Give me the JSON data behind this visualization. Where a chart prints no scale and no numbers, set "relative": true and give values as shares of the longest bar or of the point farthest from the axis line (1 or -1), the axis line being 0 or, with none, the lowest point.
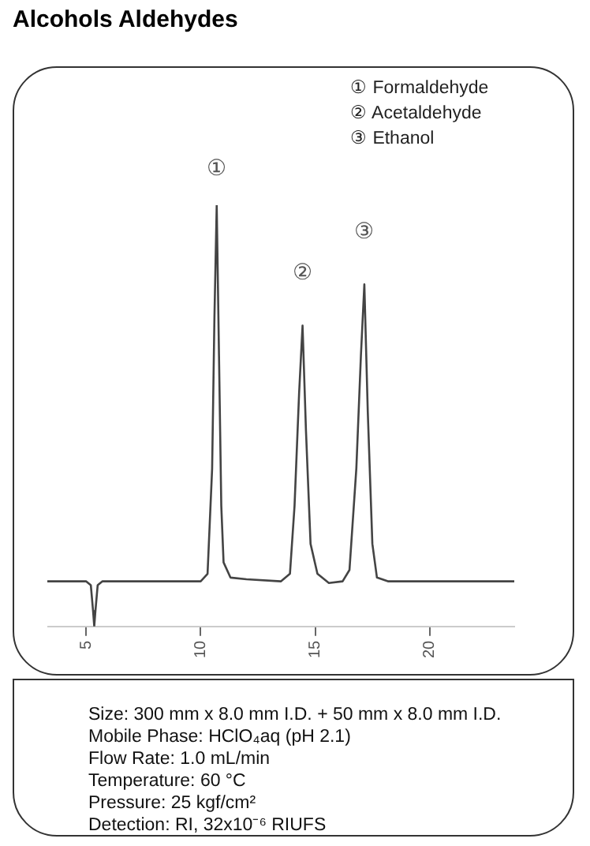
{
  "chart_data": {
    "type": "line",
    "title": "Alcohols Aldehydes",
    "relative": true,
    "color": "#444444",
    "x": [
      3.3,
      5.0,
      5.2,
      5.3,
      5.35,
      5.4,
      5.5,
      5.7,
      10.0,
      10.3,
      10.5,
      10.6,
      10.7,
      10.8,
      10.9,
      11.0,
      11.3,
      12.0,
      13.5,
      13.9,
      14.1,
      14.3,
      14.45,
      14.6,
      14.8,
      15.1,
      15.6,
      16.2,
      16.5,
      16.8,
      17.0,
      17.15,
      17.3,
      17.5,
      17.7,
      18.2,
      23.7
    ],
    "values": [
      0.107,
      0.107,
      0.098,
      0.036,
      0,
      0.036,
      0.098,
      0.107,
      0.107,
      0.125,
      0.375,
      0.732,
      1,
      0.643,
      0.286,
      0.152,
      0.116,
      0.112,
      0.107,
      0.125,
      0.286,
      0.554,
      0.714,
      0.464,
      0.196,
      0.125,
      0.103,
      0.107,
      0.134,
      0.375,
      0.643,
      0.812,
      0.509,
      0.196,
      0.116,
      0.107,
      0.107
    ],
    "xlim": [
      3.3,
      23.7
    ],
    "xticks": [
      5,
      10,
      15,
      20
    ],
    "grid": false,
    "legend": false,
    "marker": "none",
    "line_style": "solid",
    "annotations": [
      "① Formaldehyde",
      "② Acetaldehyde",
      "③ Ethanol",
      "①",
      "②",
      "③",
      "Size: 300 mm x 8.0 mm I.D. + 50 mm x 8.0 mm I.D.",
      "Mobile Phase: HClO₄aq (pH 2.1)",
      "Flow Rate: 1.0 mL/min",
      "Temperature: 60 °C",
      "Pressure: 25 kgf/cm²",
      "Detection: RI, 32x10⁻⁶ RIUFS"
    ]
  }
}
